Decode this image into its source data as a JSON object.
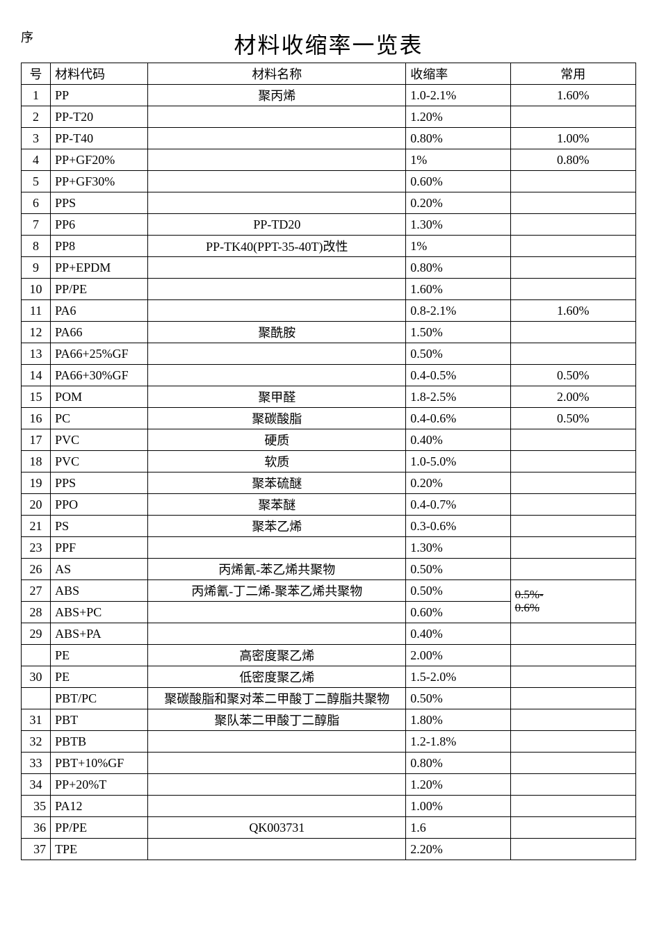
{
  "title": "材料收缩率一览表",
  "seqPrefix": "序",
  "header": {
    "seq": "号",
    "code": "材料代码",
    "name": "材料名称",
    "rate": "收缩率",
    "common": "常用"
  },
  "colors": {
    "text": "#000000",
    "border": "#000000",
    "background": "#ffffff"
  },
  "colWidths": {
    "seq": 42,
    "code": 140,
    "name": 370,
    "rate": 150,
    "common": 180
  },
  "fonts": {
    "title": 32,
    "body": 18
  },
  "rows": [
    {
      "seq": "1",
      "code": "PP",
      "name": "聚丙烯",
      "rate": "1.0-2.1%",
      "common": "1.60%"
    },
    {
      "seq": "2",
      "code": "PP-T20",
      "name": "",
      "rate": "1.20%",
      "common": ""
    },
    {
      "seq": "3",
      "code": "PP-T40",
      "name": "",
      "rate": "0.80%",
      "common": "1.00%"
    },
    {
      "seq": "4",
      "code": "PP+GF20%",
      "name": "",
      "rate": "1%",
      "common": "0.80%"
    },
    {
      "seq": "5",
      "code": "PP+GF30%",
      "name": "",
      "rate": "0.60%",
      "common": ""
    },
    {
      "seq": "6",
      "code": "PPS",
      "name": "",
      "rate": "0.20%",
      "common": ""
    },
    {
      "seq": "7",
      "code": "PP6",
      "name": "PP-TD20",
      "rate": "1.30%",
      "common": ""
    },
    {
      "seq": "8",
      "code": "PP8",
      "name": "PP-TK40(PPT-35-40T)改性",
      "rate": "1%",
      "common": ""
    },
    {
      "seq": "9",
      "code": "PP+EPDM",
      "name": "",
      "rate": "0.80%",
      "common": ""
    },
    {
      "seq": "10",
      "code": "PP/PE",
      "name": "",
      "rate": "1.60%",
      "common": ""
    },
    {
      "seq": "11",
      "code": "PA6",
      "name": "",
      "rate": "0.8-2.1%",
      "common": "1.60%"
    },
    {
      "seq": "12",
      "code": "PA66",
      "name": "聚酰胺",
      "rate": "1.50%",
      "common": ""
    },
    {
      "seq": "13",
      "code": "PA66+25%GF",
      "name": "",
      "rate": "0.50%",
      "common": ""
    },
    {
      "seq": "14",
      "code": "PA66+30%GF",
      "name": "",
      "rate": "0.4-0.5%",
      "common": "0.50%"
    },
    {
      "seq": "15",
      "code": "POM",
      "name": "聚甲醛",
      "rate": "1.8-2.5%",
      "common": "2.00%"
    },
    {
      "seq": "16",
      "code": "PC",
      "name": "聚碳酸脂",
      "rate": "0.4-0.6%",
      "common": "0.50%"
    },
    {
      "seq": "17",
      "code": "PVC",
      "name": "硬质",
      "rate": "0.40%",
      "common": ""
    },
    {
      "seq": "18",
      "code": "PVC",
      "name": "软质",
      "rate": "1.0-5.0%",
      "common": ""
    },
    {
      "seq": "19",
      "code": "PPS",
      "name": "聚苯硫醚",
      "rate": "0.20%",
      "common": ""
    },
    {
      "seq": "20",
      "code": "PPO",
      "name": "聚苯醚",
      "rate": "0.4-0.7%",
      "common": ""
    },
    {
      "seq": "21",
      "code": "PS",
      "name": "聚苯乙烯",
      "rate": "0.3-0.6%",
      "common": ""
    },
    {
      "seq": "23",
      "code": "PPF",
      "name": "",
      "rate": "1.30%",
      "common": ""
    },
    {
      "seq": "26",
      "code": "AS",
      "name": "丙烯氰-苯乙烯共聚物",
      "rate": "0.50%",
      "common": ""
    },
    {
      "seq": "27",
      "code": "ABS",
      "name": "丙烯氰-丁二烯-聚苯乙烯共聚物",
      "rate": "0.50%",
      "common": "",
      "mergeCommon": 2,
      "commonMerged": "0.5%-\n0.6%",
      "commonStrike": true
    },
    {
      "seq": "28",
      "code": "ABS+PC",
      "name": "",
      "rate": "0.60%",
      "common": "",
      "skipCommon": true
    },
    {
      "seq": "29",
      "code": "ABS+PA",
      "name": "",
      "rate": "0.40%",
      "common": ""
    },
    {
      "seq": "",
      "code": "PE",
      "name": "高密度聚乙烯",
      "rate": "2.00%",
      "common": ""
    },
    {
      "seq": "30",
      "code": "PE",
      "name": "低密度聚乙烯",
      "rate": "1.5-2.0%",
      "common": ""
    },
    {
      "seq": "",
      "code": "PBT/PC",
      "name": "聚碳酸脂和聚对苯二甲酸丁二醇脂共聚物",
      "rate": "0.50%",
      "common": ""
    },
    {
      "seq": "31",
      "code": "PBT",
      "name": "聚队苯二甲酸丁二醇脂",
      "rate": "1.80%",
      "common": ""
    },
    {
      "seq": "32",
      "code": "PBTB",
      "name": "",
      "rate": "1.2-1.8%",
      "common": ""
    },
    {
      "seq": "33",
      "code": "PBT+10%GF",
      "name": "",
      "rate": "0.80%",
      "common": ""
    },
    {
      "seq": "34",
      "code": "PP+20%T",
      "name": "",
      "rate": "1.20%",
      "common": ""
    },
    {
      "seq": "35",
      "code": "PA12",
      "name": "",
      "rate": "1.00%",
      "common": "",
      "seqAlign": "right"
    },
    {
      "seq": "36",
      "code": "PP/PE",
      "name": "QK003731",
      "rate": "1.6",
      "common": "",
      "seqAlign": "right"
    },
    {
      "seq": "37",
      "code": "TPE",
      "name": "",
      "rate": "2.20%",
      "common": "",
      "seqAlign": "right"
    }
  ]
}
